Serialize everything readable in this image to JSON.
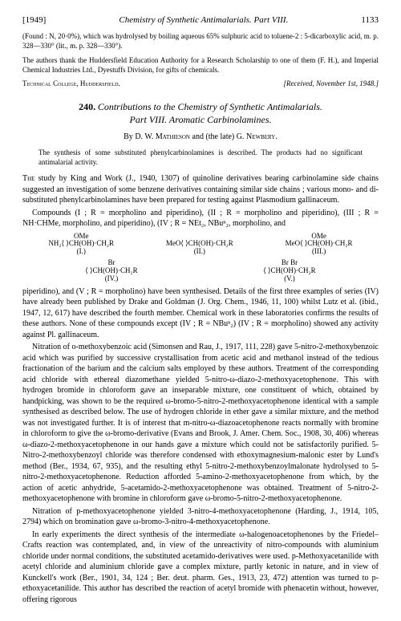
{
  "header": {
    "year": "[1949]",
    "running": "Chemistry of Synthetic Antimalarials. Part VIII.",
    "page": "1133"
  },
  "found": "(Found : N, 20·0%), which was hydrolysed by boiling aqueous 65% sulphuric acid to toluene-2 : 5-dicarboxylic acid, m. p. 328—330° (lit., m. p. 328—330°).",
  "thanks": "The authors thank the Huddersfield Education Authority for a Research Scholarship to one of them (F. H.), and Imperial Chemical Industries Ltd., Dyestuffs Division, for gifts of chemicals.",
  "affil": {
    "left": "Technical College, Huddersfield.",
    "right": "[Received, November 1st, 1948.]"
  },
  "title": {
    "num": "240.",
    "line1": "Contributions to the Chemistry of Synthetic Antimalarials.",
    "line2": "Part VIII. Aromatic Carbinolamines."
  },
  "authors": {
    "by": "By ",
    "a1": "D. W. Mathieson",
    "mid": " and (the late) ",
    "a2": "G. Newbery."
  },
  "abstract": "The synthesis of some substituted phenylcarbinolamines is described. The products had no significant antimalarial activity.",
  "struct": {
    "s1a": "OMe",
    "s1b": "NH₂⟨  ⟩CH(OH)·CH₂R",
    "s1c": "(I.)",
    "s2a": "MeO⟨  ⟩CH(OH)·CH₂R",
    "s2c": "(II.)",
    "s3a": "MeO⟨  ⟩CH(OH)·CH₂R",
    "s3b": "OMe",
    "s3c": "(III.)",
    "s4a": "Br",
    "s4b": "⟨  ⟩CH(OH)·CH₂R",
    "s4c": "(IV.)",
    "s5a": "Br   Br",
    "s5b": "⟨  ⟩CH(OH)·CH₂R",
    "s5c": "(V.)"
  },
  "para1a": "The",
  "para1b": " study by King and Work (J., 1940, 1307) of quinoline derivatives bearing carbinolamine side chains suggested an investigation of some benzene derivatives containing similar side chains ; various mono- and di-substituted phenylcarbinolamines have been prepared for testing against Plasmodium gallinaceum.",
  "para2": "Compounds (I ; R = morpholino and piperidino), (II ; R = morpholino and piperidino), (III ; R = NH·CHMe, morpholino, and piperidino), (IV ; R = NEt₂, NBuⁿ₂, morpholino, and",
  "para3": "piperidino), and (V ; R = morpholino) have been synthesised. Details of the first three examples of series (IV) have already been published by Drake and Goldman (J. Org. Chem., 1946, 11, 100) whilst Lutz et al. (ibid., 1947, 12, 617) have described the fourth member. Chemical work in these laboratories confirms the results of these authors. None of these compounds except (IV ; R = NBuⁿ₂) (IV ; R = morpholino) showed any activity against Pl. gallinaceum.",
  "para4": "Nitration of o-methoxybenzoic acid (Simonsen and Rau, J., 1917, 111, 228) gave 5-nitro-2-methoxybenzoic acid which was purified by successive crystallisation from acetic acid and methanol instead of the tedious fractionation of the barium and the calcium salts employed by these authors. Treatment of the corresponding acid chloride with ethereal diazomethane yielded 5-nitro-ω-diazo-2-methoxyacetophenone. This with hydrogen bromide in chloroform gave an inseparable mixture, one constituent of which, obtained by handpicking, was shown to be the required ω-bromo-5-nitro-2-methoxyacetophenone identical with a sample synthesised as described below. The use of hydrogen chloride in ether gave a similar mixture, and the method was not investigated further. It is of interest that m-nitro-ω-diazoacetophenone reacts normally with bromine in chloroform to give the ω-bromo-derivative (Evans and Brook, J. Amer. Chem. Soc., 1908, 30, 406) whereas ω-diazo-2-methoxyacetophenone in our hands gave a mixture which could not be satisfactorily purified. 5-Nitro-2-methoxybenzoyl chloride was therefore condensed with ethoxymagnesium-malonic ester by Lund's method (Ber., 1934, 67, 935), and the resulting ethyl 5-nitro-2-methoxybenzoylmalonate hydrolysed to 5-nitro-2-methoxyacetophenone. Reduction afforded 5-amino-2-methoxyacetophenone from which, by the action of acetic anhydride, 5-acetamido-2-methoxyacetophenone was obtained. Treatment of 5-nitro-2-methoxyacetophenone with bromine in chloroform gave ω-bromo-5-nitro-2-methoxyacetophenone.",
  "para5": "Nitration of p-methoxyacetophenone yielded 3-nitro-4-methoxyacetophenone (Harding, J., 1914, 105, 2794) which on bromination gave ω-bromo-3-nitro-4-methoxyacetophenone.",
  "para6": "In early experiments the direct synthesis of the intermediate ω-halogenoacetophenones by the Friedel–Crafts reaction was contemplated, and, in view of the unreactivity of nitro-compounds with aluminium chloride under normal conditions, the substituted acetamido-derivatives were used. p-Methoxyacetanilide with acetyl chloride and aluminium chloride gave a complex mixture, partly ketonic in nature, and in view of Kunckell's work (Ber., 1901, 34, 124 ; Ber. deut. pharm. Ges., 1913, 23, 472) attention was turned to p-ethoxyacetanilide. This author has described the reaction of acetyl bromide with phenacetin without, however, offering rigorous"
}
